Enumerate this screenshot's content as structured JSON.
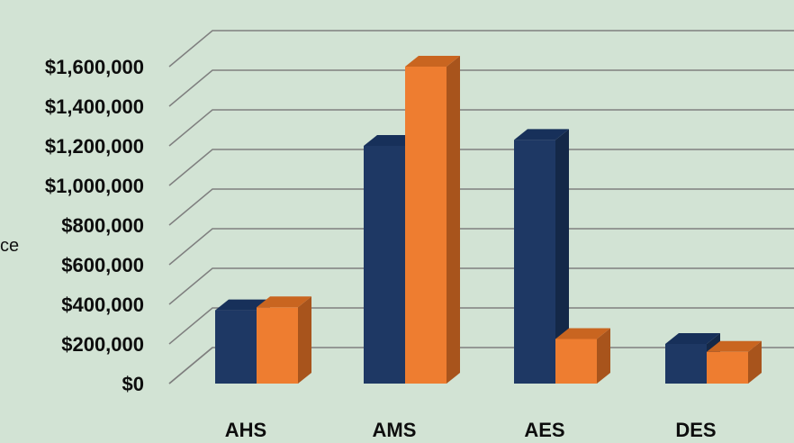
{
  "fragment_text": "ce",
  "colors": {
    "background": "#d2e3d4",
    "series_a_front": "#1e3864",
    "series_a_side": "#142848",
    "series_a_top": "#17305a",
    "series_b_front": "#ee7d30",
    "series_b_side": "#a8541c",
    "series_b_top": "#c96520",
    "grid": "#7f7f7f",
    "text": "#0d0d0d"
  },
  "chart_data": {
    "type": "bar",
    "style": "3d-clustered-column",
    "categories": [
      "AHS",
      "AMS",
      "AES",
      "DES"
    ],
    "series": [
      {
        "values": [
          370000,
          1200000,
          1230000,
          200000
        ]
      },
      {
        "values": [
          385000,
          1600000,
          225000,
          160000
        ]
      }
    ],
    "y_ticks": [
      "$0",
      "$200,000",
      "$400,000",
      "$600,000",
      "$800,000",
      "$1,000,000",
      "$1,200,000",
      "$1,400,000",
      "$1,600,000"
    ],
    "ylim": [
      0,
      1600000
    ],
    "grid": true,
    "legend": "none"
  }
}
